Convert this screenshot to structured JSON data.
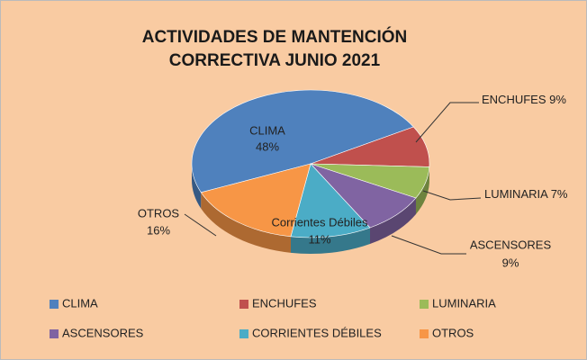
{
  "chart_data": {
    "type": "pie3d",
    "title": [
      "ACTIVIDADES DE MANTENCIÓN",
      "CORRECTIVA JUNIO 2021"
    ],
    "categories": [
      "CLIMA",
      "ENCHUFES",
      "LUMINARIA",
      "ASCENSORES",
      "CORRIENTES DÉBILES",
      "OTROS"
    ],
    "slice_labels": [
      "CLIMA",
      "ENCHUFES",
      "LUMINARIA",
      "ASCENSORES",
      "Corrientes Débiles",
      "OTROS"
    ],
    "values": [
      48,
      9,
      7,
      9,
      11,
      16
    ],
    "value_labels": [
      "48%",
      "9%",
      "7%",
      "9%",
      "11%",
      "16%"
    ],
    "colors": [
      "#4f81bd",
      "#c0504d",
      "#9bbb59",
      "#8064a2",
      "#4bacc6",
      "#f79646"
    ],
    "legend": "bottom"
  }
}
